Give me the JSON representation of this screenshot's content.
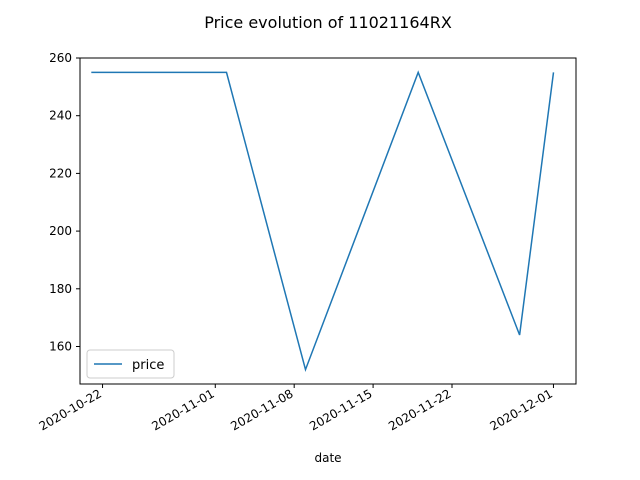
{
  "chart_data": {
    "type": "line",
    "title": "Price evolution of 11021164RX",
    "xlabel": "date",
    "ylabel": "",
    "x": [
      "2020-10-21",
      "2020-11-02",
      "2020-11-09",
      "2020-11-19",
      "2020-11-28",
      "2020-12-01"
    ],
    "series": [
      {
        "name": "price",
        "values": [
          255,
          255,
          152,
          255,
          164,
          255
        ],
        "color": "#1f77b4"
      }
    ],
    "xlim": [
      "2020-10-20",
      "2020-12-03"
    ],
    "ylim": [
      147,
      260
    ],
    "xticks": [
      "2020-10-22",
      "2020-11-01",
      "2020-11-08",
      "2020-11-15",
      "2020-11-22",
      "2020-12-01"
    ],
    "yticks": [
      160,
      180,
      200,
      220,
      240,
      260
    ],
    "grid": false,
    "legend_position": "lower-left"
  }
}
